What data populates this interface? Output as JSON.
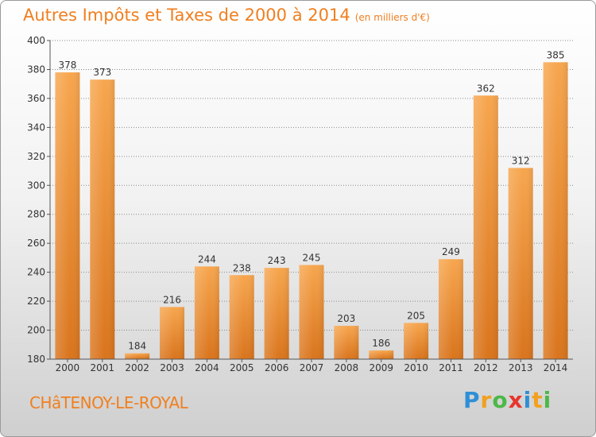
{
  "header": {
    "title": "Autres Impôts et Taxes de 2000 à 2014",
    "unit": "(en milliers d'€)"
  },
  "footer": {
    "location": "CHâTENOY-LE-ROYAL",
    "logo_letters": [
      "P",
      "r",
      "o",
      "x",
      "i",
      "t",
      "i"
    ]
  },
  "colors": {
    "title": "#f07f1f",
    "bar_light": "#f7a64e",
    "bar_dark": "#d9741c",
    "logo_blue": "#2f8fd6",
    "logo_orange": "#f2a01f",
    "logo_green": "#4cb848",
    "logo_red": "#e8352c"
  },
  "chart_data": {
    "type": "bar",
    "title": "Autres Impôts et Taxes de 2000 à 2014",
    "subtitle": "(en milliers d'€)",
    "xlabel": "",
    "ylabel": "",
    "categories": [
      "2000",
      "2001",
      "2002",
      "2003",
      "2004",
      "2005",
      "2006",
      "2007",
      "2008",
      "2009",
      "2010",
      "2011",
      "2012",
      "2013",
      "2014"
    ],
    "values": [
      378,
      373,
      184,
      216,
      244,
      238,
      243,
      245,
      203,
      186,
      205,
      249,
      362,
      312,
      385
    ],
    "ylim": [
      180,
      400
    ],
    "yticks": [
      180,
      200,
      220,
      240,
      260,
      280,
      300,
      320,
      340,
      360,
      380,
      400
    ],
    "grid": true,
    "data_labels": true
  }
}
